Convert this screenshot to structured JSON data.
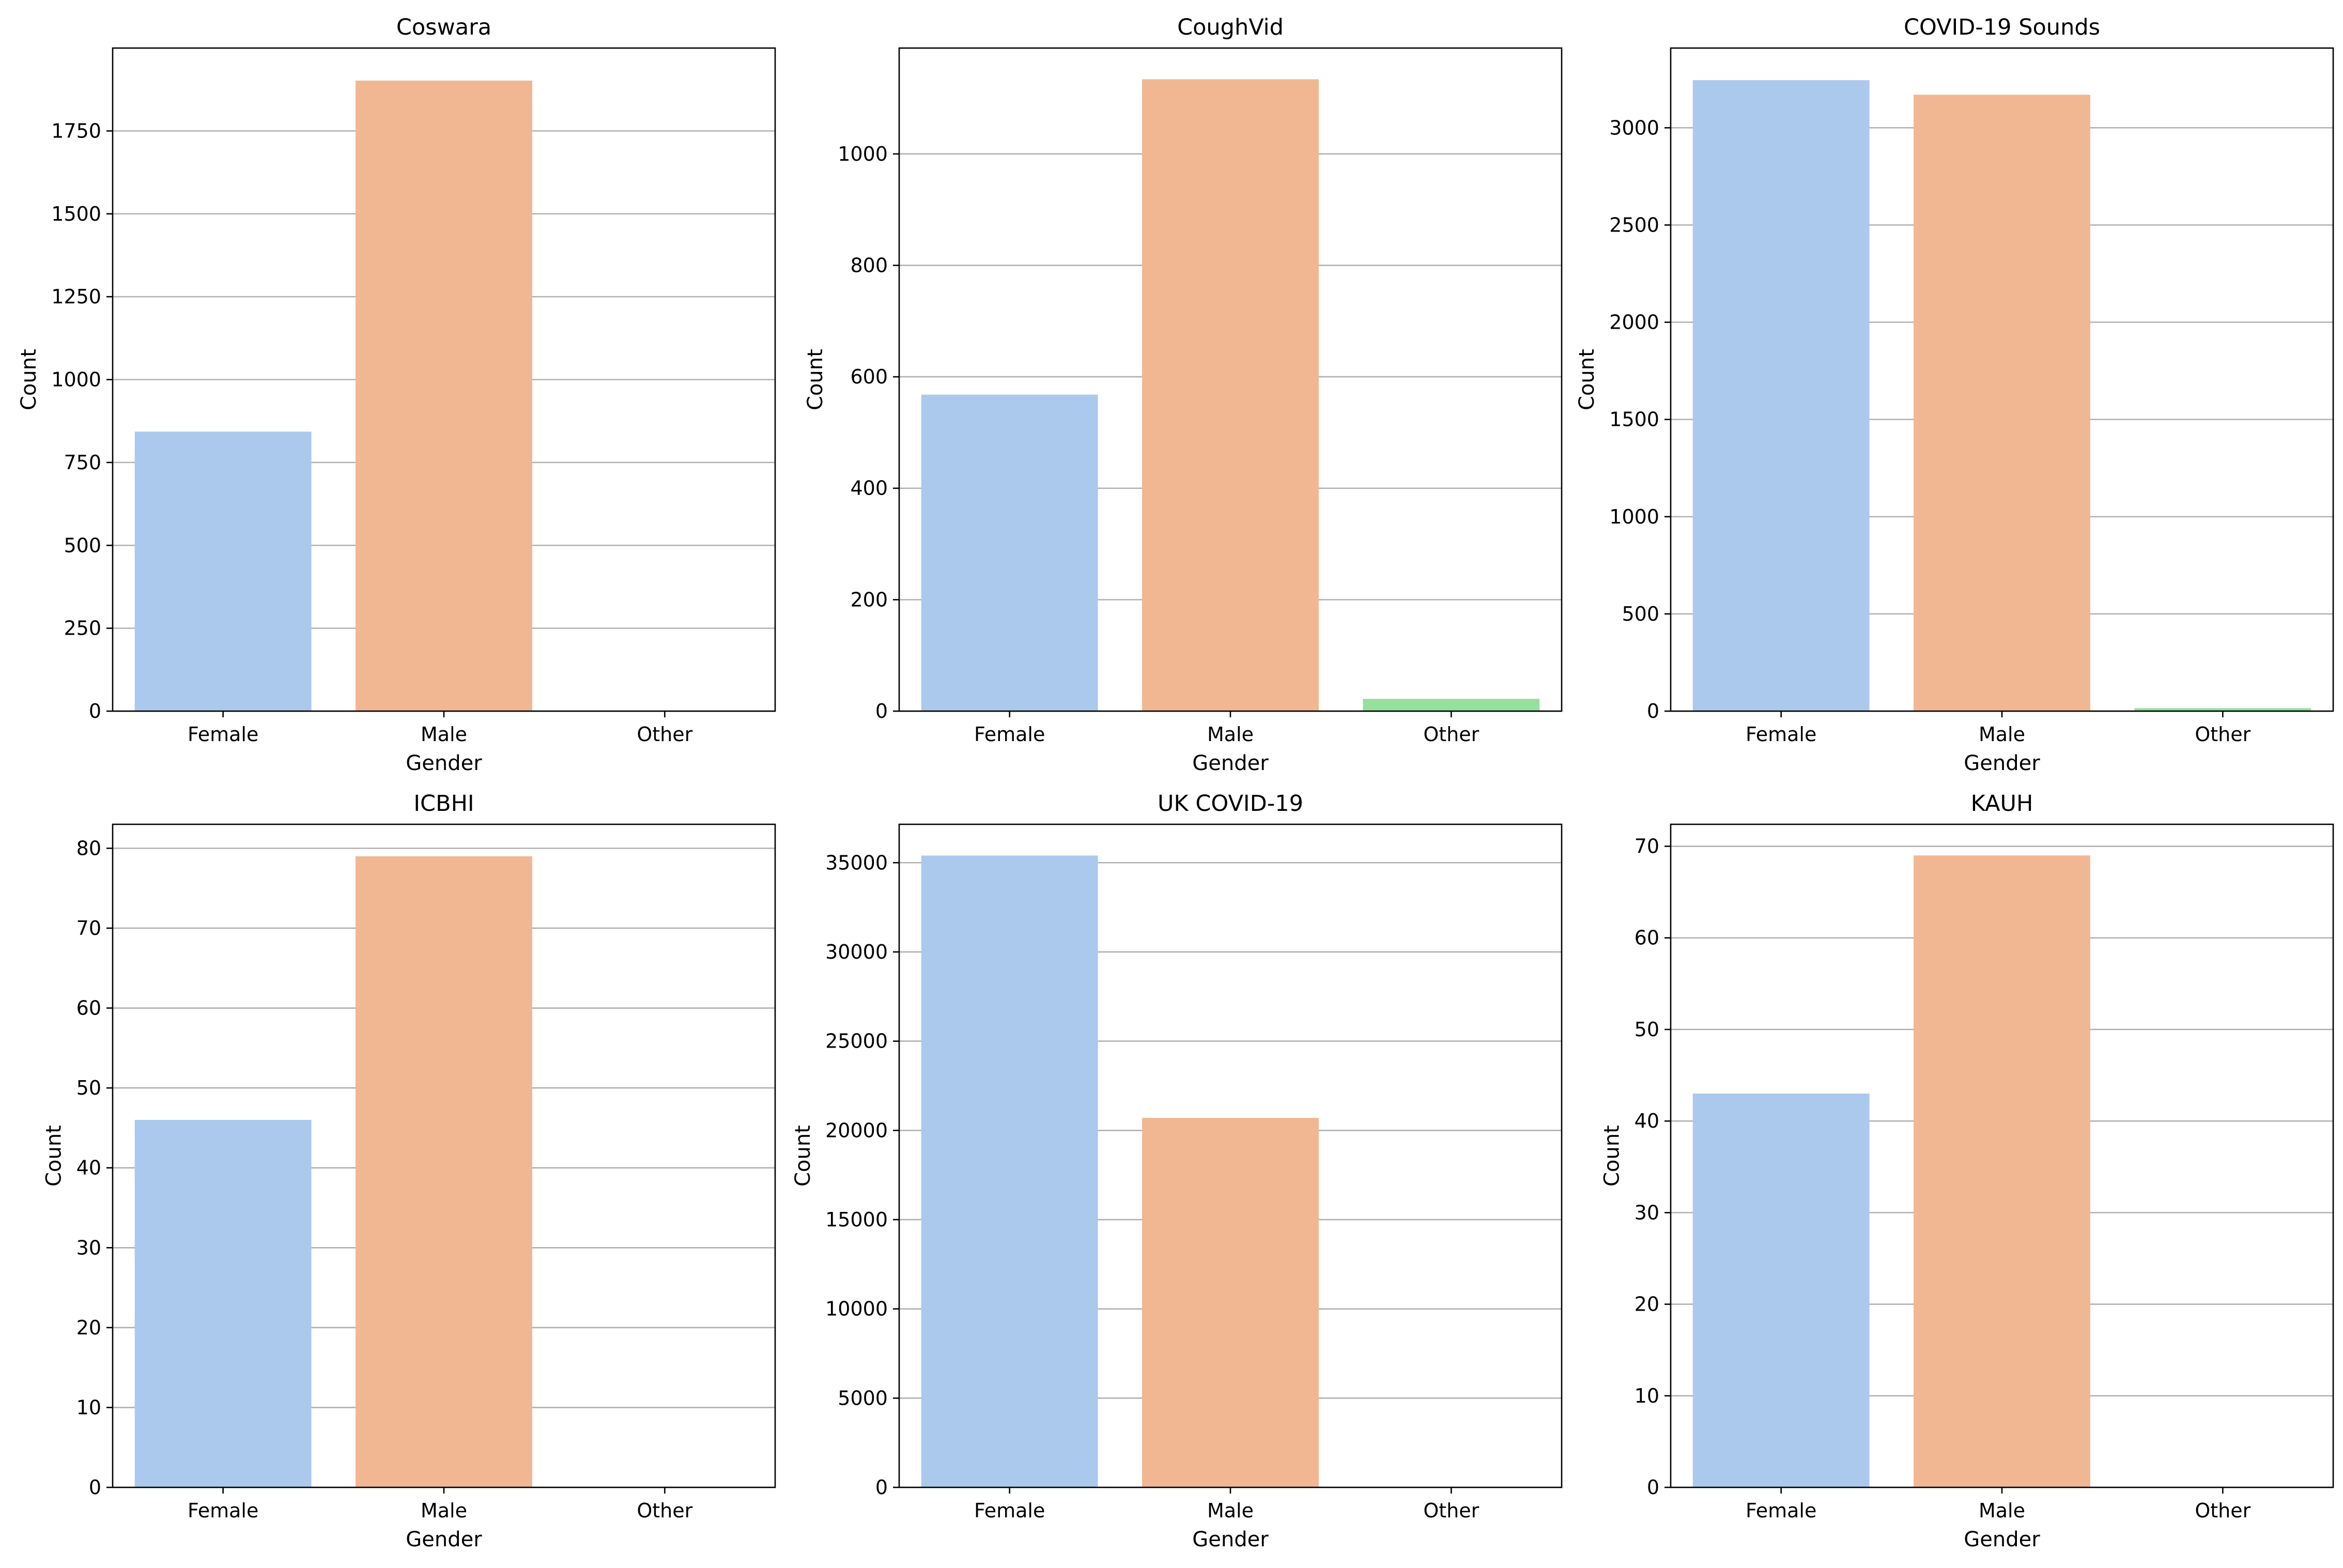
{
  "colors": {
    "Female": "#abc9ec",
    "Male": "#f1b792",
    "Other": "#95e09c",
    "grid": "#b0b0b0",
    "axes": "#000000"
  },
  "chart_data": [
    {
      "type": "bar",
      "title": "Coswara",
      "xlabel": "Gender",
      "ylabel": "Count",
      "categories": [
        "Female",
        "Male",
        "Other"
      ],
      "values": [
        843,
        1902,
        0
      ],
      "ylim": [
        0,
        2000
      ],
      "yticks": [
        0,
        250,
        500,
        750,
        1000,
        1250,
        1500,
        1750
      ],
      "ytick_labels": [
        "0",
        "250",
        "500",
        "750",
        "1000",
        "1250",
        "1500",
        "1750"
      ],
      "grid": "y"
    },
    {
      "type": "bar",
      "title": "CoughVid",
      "xlabel": "Gender",
      "ylabel": "Count",
      "categories": [
        "Female",
        "Male",
        "Other"
      ],
      "values": [
        568,
        1134,
        22
      ],
      "ylim": [
        0,
        1190
      ],
      "yticks": [
        0,
        200,
        400,
        600,
        800,
        1000
      ],
      "ytick_labels": [
        "0",
        "200",
        "400",
        "600",
        "800",
        "1000"
      ],
      "grid": "y"
    },
    {
      "type": "bar",
      "title": "COVID-19 Sounds",
      "xlabel": "Gender",
      "ylabel": "Count",
      "categories": [
        "Female",
        "Male",
        "Other"
      ],
      "values": [
        3245,
        3170,
        15
      ],
      "ylim": [
        0,
        3410
      ],
      "yticks": [
        0,
        500,
        1000,
        1500,
        2000,
        2500,
        3000
      ],
      "ytick_labels": [
        "0",
        "500",
        "1000",
        "1500",
        "2000",
        "2500",
        "3000"
      ],
      "grid": "y"
    },
    {
      "type": "bar",
      "title": "ICBHI",
      "xlabel": "Gender",
      "ylabel": "Count",
      "categories": [
        "Female",
        "Male",
        "Other"
      ],
      "values": [
        46,
        79,
        0
      ],
      "ylim": [
        0,
        83
      ],
      "yticks": [
        0,
        10,
        20,
        30,
        40,
        50,
        60,
        70,
        80
      ],
      "ytick_labels": [
        "0",
        "10",
        "20",
        "30",
        "40",
        "50",
        "60",
        "70",
        "80"
      ],
      "grid": "y"
    },
    {
      "type": "bar",
      "title": "UK COVID-19",
      "xlabel": "Gender",
      "ylabel": "Count",
      "categories": [
        "Female",
        "Male",
        "Other"
      ],
      "values": [
        35400,
        20700,
        0
      ],
      "ylim": [
        0,
        37150
      ],
      "yticks": [
        0,
        5000,
        10000,
        15000,
        20000,
        25000,
        30000,
        35000
      ],
      "ytick_labels": [
        "0",
        "5000",
        "10000",
        "15000",
        "20000",
        "25000",
        "30000",
        "35000"
      ],
      "grid": "y"
    },
    {
      "type": "bar",
      "title": "KAUH",
      "xlabel": "Gender",
      "ylabel": "Count",
      "categories": [
        "Female",
        "Male",
        "Other"
      ],
      "values": [
        43,
        69,
        0
      ],
      "ylim": [
        0,
        72.4
      ],
      "yticks": [
        0,
        10,
        20,
        30,
        40,
        50,
        60,
        70
      ],
      "ytick_labels": [
        "0",
        "10",
        "20",
        "30",
        "40",
        "50",
        "60",
        "70"
      ],
      "grid": "y"
    }
  ]
}
